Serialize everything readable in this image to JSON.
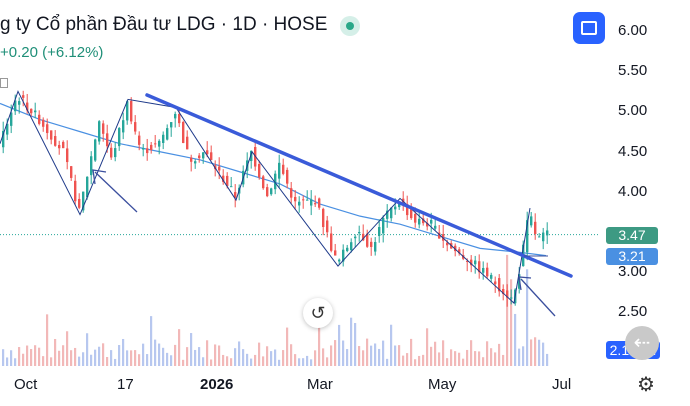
{
  "header": {
    "title": "g ty Cổ phần Đầu tư LDG · 1D · HOSE",
    "change": "+0.20 (+6.12%)"
  },
  "chart_data": {
    "type": "candlestick",
    "y_axis_ticks": [
      "6.00",
      "5.50",
      "5.00",
      "4.50",
      "4.00",
      "3.50",
      "3.00",
      "2.50"
    ],
    "x_axis_ticks": [
      "Oct",
      "17",
      "2026",
      "Mar",
      "May",
      "Jul"
    ],
    "ylim": [
      2.2,
      6.2
    ],
    "price_labels": {
      "last": "3.47",
      "ma": "3.21"
    },
    "volume_label": "2.139M",
    "trendline": {
      "from": [
        "early Dec",
        5.2
      ],
      "to": [
        "late Jun",
        2.95
      ]
    },
    "close_path": [
      [
        0,
        4.6
      ],
      [
        18,
        5.2
      ],
      [
        40,
        4.9
      ],
      [
        64,
        4.5
      ],
      [
        80,
        3.75
      ],
      [
        100,
        4.9
      ],
      [
        112,
        4.4
      ],
      [
        128,
        5.1
      ],
      [
        142,
        4.5
      ],
      [
        160,
        4.6
      ],
      [
        176,
        5.0
      ],
      [
        190,
        4.4
      ],
      [
        205,
        4.5
      ],
      [
        222,
        4.2
      ],
      [
        236,
        3.95
      ],
      [
        252,
        4.5
      ],
      [
        268,
        3.95
      ],
      [
        280,
        4.35
      ],
      [
        296,
        3.85
      ],
      [
        316,
        3.9
      ],
      [
        338,
        3.1
      ],
      [
        358,
        3.55
      ],
      [
        372,
        3.3
      ],
      [
        384,
        3.65
      ],
      [
        400,
        3.9
      ],
      [
        414,
        3.65
      ],
      [
        432,
        3.6
      ],
      [
        452,
        3.3
      ],
      [
        470,
        3.15
      ],
      [
        490,
        2.95
      ],
      [
        514,
        2.65
      ],
      [
        522,
        3.15
      ],
      [
        530,
        3.75
      ],
      [
        538,
        3.4
      ],
      [
        546,
        3.47
      ]
    ],
    "ma_path": [
      [
        0,
        5.1
      ],
      [
        40,
        4.9
      ],
      [
        80,
        4.75
      ],
      [
        120,
        4.6
      ],
      [
        160,
        4.5
      ],
      [
        200,
        4.4
      ],
      [
        240,
        4.25
      ],
      [
        280,
        4.1
      ],
      [
        320,
        3.85
      ],
      [
        360,
        3.7
      ],
      [
        400,
        3.6
      ],
      [
        440,
        3.45
      ],
      [
        480,
        3.3
      ],
      [
        520,
        3.25
      ],
      [
        546,
        3.21
      ]
    ],
    "volume_bars_note": "daily volume histogram along the bottom"
  },
  "colors": {
    "up": "#26a69a",
    "down": "#ef5350",
    "trendline": "#3a5bd9",
    "ma": "#4a90e2",
    "zigzag": "#1e3a8a"
  },
  "controls": {
    "reset_icon": "↺",
    "scroll_icon": "⇠",
    "settings_icon": "⚙"
  }
}
